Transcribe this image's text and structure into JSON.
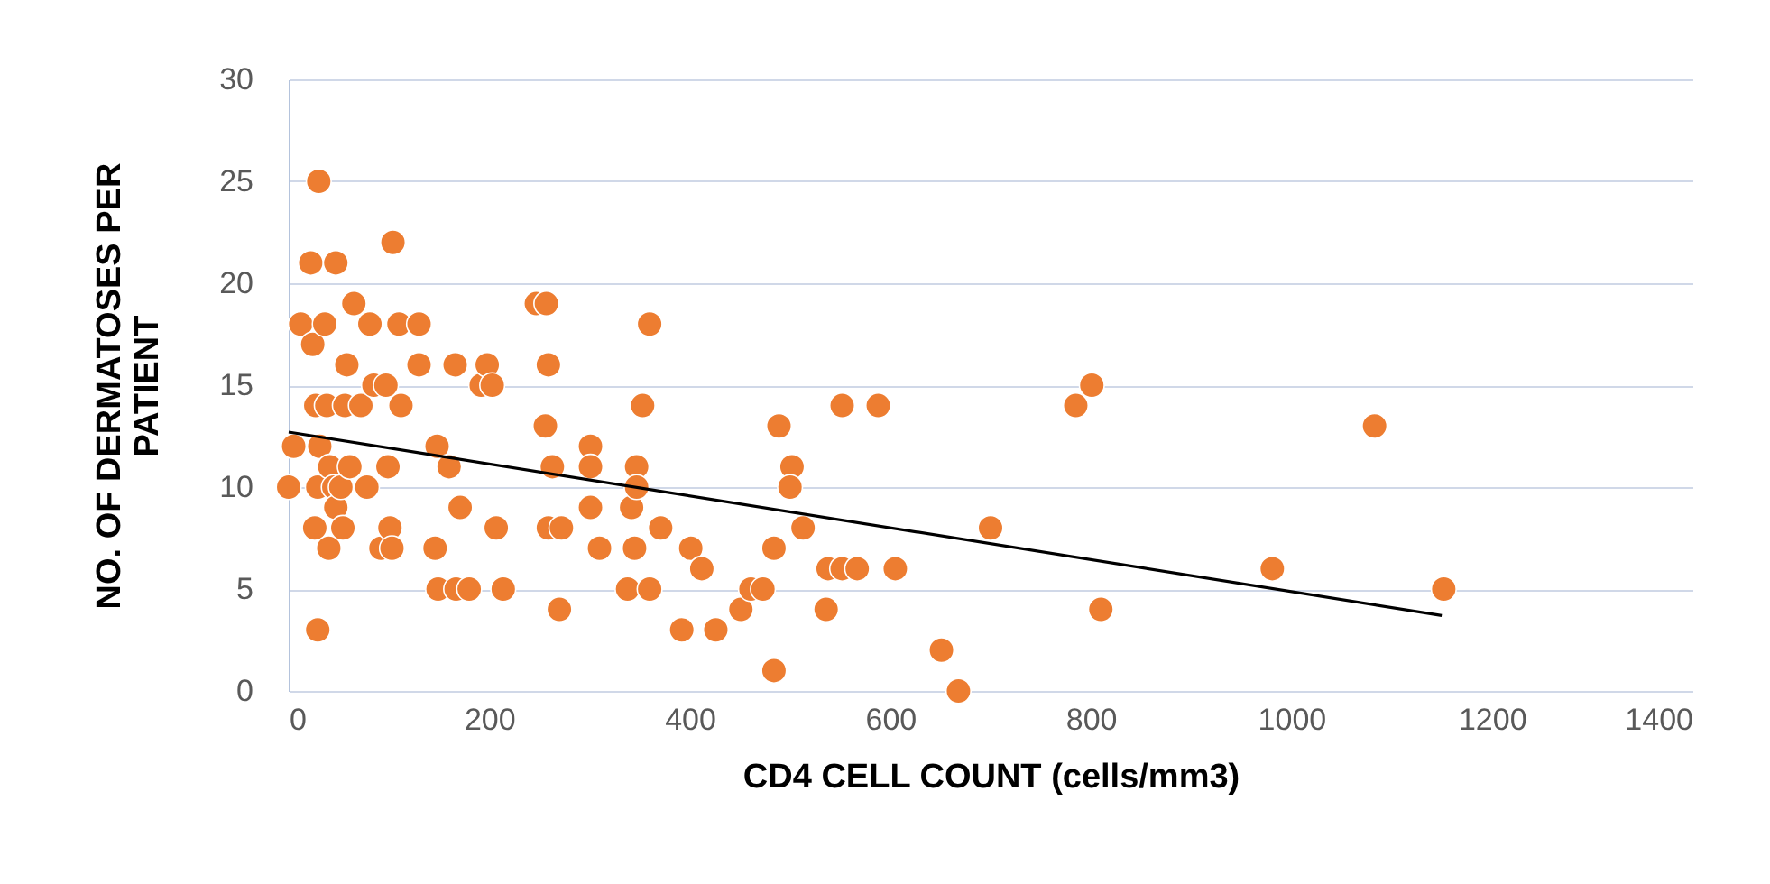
{
  "chart_data": {
    "type": "scatter",
    "xlabel": "CD4 CELL COUNT (cells/mm3)",
    "ylabel": "NO. OF DERMATOSES PER PATIENT",
    "xlim": [
      0,
      1400
    ],
    "xticks": [
      0,
      200,
      400,
      600,
      800,
      1000,
      1200,
      1400
    ],
    "ylim": [
      0,
      30
    ],
    "yticks": [
      0,
      5,
      10,
      15,
      20,
      25,
      30
    ],
    "grid": "y",
    "marker": "circle",
    "series": [
      {
        "color": "#ed7d31",
        "x": [
          0,
          5,
          12,
          22,
          24,
          27,
          29,
          26,
          29,
          30,
          31,
          36,
          38,
          41,
          45,
          40,
          47,
          47,
          52,
          54,
          58,
          56,
          61,
          65,
          72,
          78,
          81,
          85,
          92,
          97,
          99,
          101,
          103,
          104,
          110,
          112,
          130,
          130,
          148,
          146,
          149,
          160,
          166,
          171,
          167,
          180,
          192,
          198,
          203,
          207,
          214,
          247,
          257,
          256,
          259,
          259,
          263,
          272,
          270,
          301,
          301,
          301,
          310,
          338,
          342,
          347,
          347,
          345,
          353,
          360,
          360,
          371,
          392,
          401,
          412,
          426,
          451,
          461,
          473,
          484,
          484,
          489,
          502,
          500,
          513,
          536,
          538,
          552,
          552,
          567,
          588,
          605,
          651,
          668,
          700,
          785,
          801,
          810,
          981,
          1083,
          1152
        ],
        "values": [
          10,
          12,
          18,
          21,
          17,
          14,
          10,
          8,
          3,
          25,
          12,
          18,
          14,
          11,
          10,
          7,
          9,
          21,
          10,
          8,
          16,
          14,
          11,
          19,
          14,
          10,
          18,
          15,
          7,
          15,
          11,
          8,
          7,
          22,
          18,
          14,
          18,
          16,
          12,
          7,
          5,
          11,
          16,
          9,
          5,
          5,
          15,
          16,
          15,
          8,
          5,
          19,
          19,
          13,
          8,
          16,
          11,
          8,
          4,
          12,
          11,
          9,
          7,
          5,
          9,
          11,
          10,
          7,
          14,
          5,
          18,
          8,
          3,
          7,
          6,
          3,
          4,
          5,
          5,
          7,
          1,
          13,
          11,
          10,
          8,
          4,
          6,
          6,
          14,
          6,
          14,
          6,
          2,
          0,
          8,
          14,
          15,
          4,
          6,
          13,
          5
        ]
      },
      {
        "color": "#000000",
        "type": "line",
        "marker": "none",
        "x": [
          0,
          1150
        ],
        "values": [
          12.7,
          3.7
        ]
      }
    ]
  }
}
